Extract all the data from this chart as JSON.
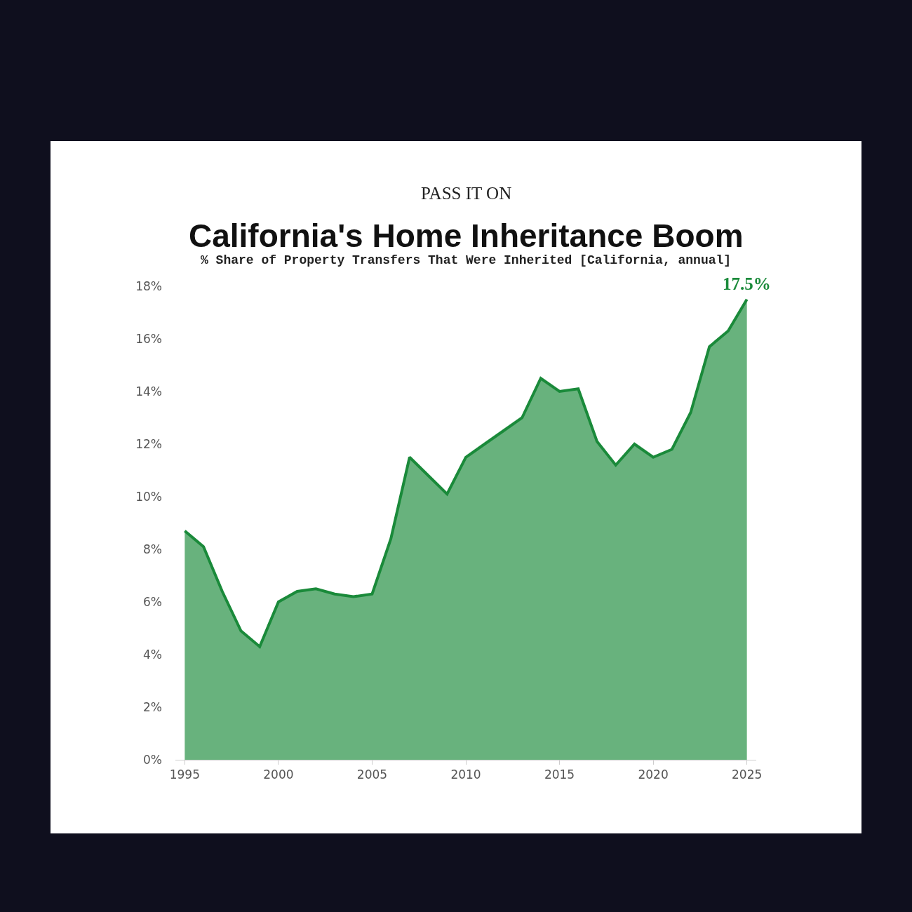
{
  "chart_data": {
    "type": "area",
    "title": "California's Home Inheritance Boom",
    "subtitle": "% Share of Property Transfers That Were Inherited [California, annual]",
    "x": [
      1995,
      1996,
      1997,
      1998,
      1999,
      2000,
      2001,
      2002,
      2003,
      2004,
      2005,
      2006,
      2007,
      2008,
      2009,
      2010,
      2011,
      2012,
      2013,
      2014,
      2015,
      2016,
      2017,
      2018,
      2019,
      2020,
      2021,
      2022,
      2023,
      2024,
      2025
    ],
    "series": [
      {
        "color": "#1a8a3a",
        "values": [
          8.7,
          8.1,
          6.4,
          4.9,
          4.3,
          6.0,
          6.4,
          6.5,
          6.3,
          6.2,
          6.3,
          8.4,
          11.5,
          10.8,
          10.1,
          11.5,
          12.0,
          12.5,
          13.0,
          14.5,
          14.0,
          14.1,
          12.1,
          11.2,
          12.0,
          11.5,
          11.8,
          13.2,
          15.7,
          16.3,
          17.5
        ]
      }
    ],
    "xlim": [
      1994.5,
      2025.5
    ],
    "xticks": [
      1995,
      2000,
      2005,
      2010,
      2015,
      2020,
      2025
    ],
    "ylim": [
      0,
      18
    ],
    "yticks": [
      {
        "value": 0,
        "label": "0%"
      },
      {
        "value": 2,
        "label": "2%"
      },
      {
        "value": 4,
        "label": "4%"
      },
      {
        "value": 6,
        "label": "6%"
      },
      {
        "value": 8,
        "label": "8%"
      },
      {
        "value": 10,
        "label": "10%"
      },
      {
        "value": 12,
        "label": "12%"
      },
      {
        "value": 14,
        "label": "14%"
      },
      {
        "value": 16,
        "label": "16%"
      },
      {
        "value": 18,
        "label": "18%"
      }
    ],
    "annotations": [
      "PASS IT ON",
      {
        "text": "17.5%",
        "x": 2025,
        "y": 17.5
      }
    ]
  }
}
